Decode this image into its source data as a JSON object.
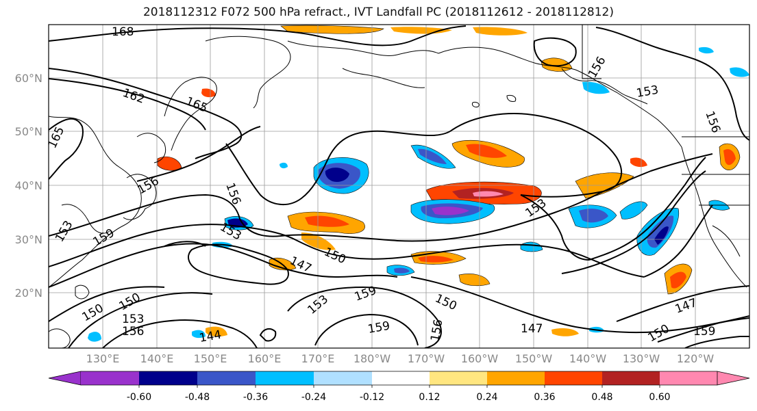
{
  "title": "2018112312 F072 500 hPa refract., IVT Landfall PC (2018112612 - 2018112812)",
  "lat_labels": [
    "60°N",
    "50°N",
    "40°N",
    "30°N",
    "20°N"
  ],
  "lon_labels": [
    "130°E",
    "140°E",
    "150°E",
    "160°E",
    "170°E",
    "180°W",
    "170°W",
    "160°W",
    "150°W",
    "140°W",
    "130°W",
    "120°W"
  ],
  "contour_labels": [
    "168",
    "162",
    "165",
    "165",
    "156",
    "153",
    "159",
    "156",
    "156",
    "153",
    "153",
    "150",
    "147",
    "150",
    "153",
    "156",
    "147",
    "150",
    "159",
    "153",
    "159",
    "150",
    "144",
    "156",
    "147",
    "150",
    "156",
    "153",
    "159"
  ],
  "colorbar": {
    "tick_labels": [
      "-0.60",
      "-0.48",
      "-0.36",
      "-0.24",
      "-0.12",
      "0.12",
      "0.24",
      "0.36",
      "0.48",
      "0.60"
    ],
    "colors": [
      "#9932CC",
      "#00008B",
      "#3A56C8",
      "#00BFFF",
      "#B0E0FF",
      "#FFFFFF",
      "#FFE680",
      "#FFA500",
      "#FF4500",
      "#B22222",
      "#FF88B0"
    ]
  }
}
